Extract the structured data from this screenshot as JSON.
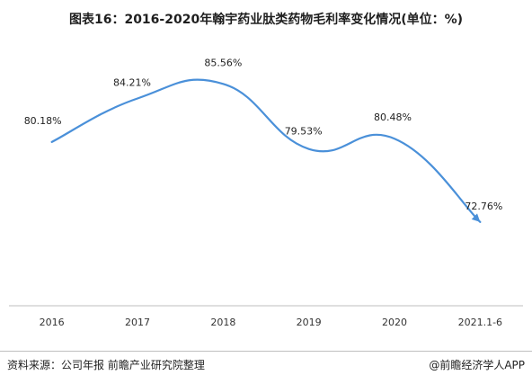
{
  "title": "图表16：2016-2020年翰宇药业肽类药物毛利率变化情况(单位：%)",
  "footer": {
    "source": "资料来源：公司年报 前瞻产业研究院整理",
    "brand": "@前瞻经济学人APP"
  },
  "colors": {
    "line": "#4a90d9",
    "axis": "#bfbfbf"
  },
  "chart_data": {
    "type": "line",
    "categories": [
      "2016",
      "2017",
      "2018",
      "2019",
      "2020",
      "2021.1-6"
    ],
    "series": [
      {
        "values": [
          80.18,
          84.21,
          85.56,
          79.53,
          80.48,
          72.76
        ],
        "labels": [
          "80.18%",
          "84.21%",
          "85.56%",
          "79.53%",
          "80.48%",
          "72.76%"
        ]
      }
    ],
    "xlabel": "",
    "ylabel": "",
    "ylim": [
      65,
      90
    ],
    "grid": false,
    "legend": "none",
    "smooth": true
  }
}
